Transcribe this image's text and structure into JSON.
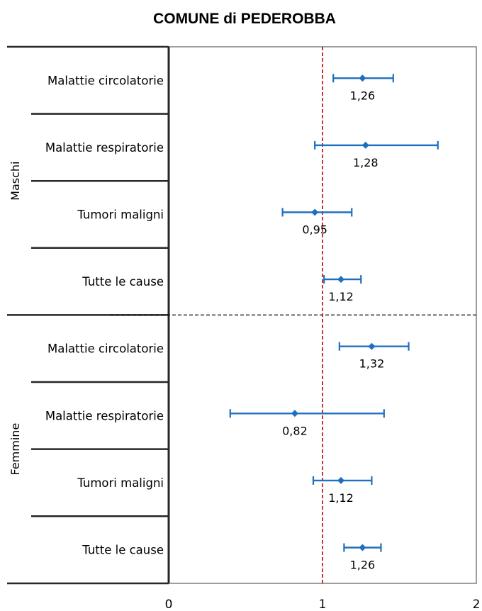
{
  "chart_data": {
    "type": "forest",
    "title": "COMUNE di PEDEROBBA",
    "xlim": [
      0,
      2
    ],
    "xticks": [
      "0",
      "1",
      "2"
    ],
    "reference_line": 1,
    "groups": [
      {
        "name": "Maschi",
        "rows": [
          {
            "category": "Malattie circolatorie",
            "value": 1.26,
            "label": "1,26",
            "low": 1.07,
            "high": 1.46
          },
          {
            "category": "Malattie respiratorie",
            "value": 1.28,
            "label": "1,28",
            "low": 0.95,
            "high": 1.75
          },
          {
            "category": "Tumori maligni",
            "value": 0.95,
            "label": "0,95",
            "low": 0.74,
            "high": 1.19
          },
          {
            "category": "Tutte le cause",
            "value": 1.12,
            "label": "1,12",
            "low": 1.01,
            "high": 1.25
          }
        ]
      },
      {
        "name": "Femmine",
        "rows": [
          {
            "category": "Malattie circolatorie",
            "value": 1.32,
            "label": "1,32",
            "low": 1.11,
            "high": 1.56
          },
          {
            "category": "Malattie respiratorie",
            "value": 0.82,
            "label": "0,82",
            "low": 0.4,
            "high": 1.4
          },
          {
            "category": "Tumori maligni",
            "value": 1.12,
            "label": "1,12",
            "low": 0.94,
            "high": 1.32
          },
          {
            "category": "Tutte le cause",
            "value": 1.26,
            "label": "1,26",
            "low": 1.14,
            "high": 1.38
          }
        ]
      }
    ],
    "colors": {
      "marker": "#1f6fbf",
      "reference": "#c00000",
      "frame": "#7f7f7f",
      "rule": "#262626"
    }
  }
}
